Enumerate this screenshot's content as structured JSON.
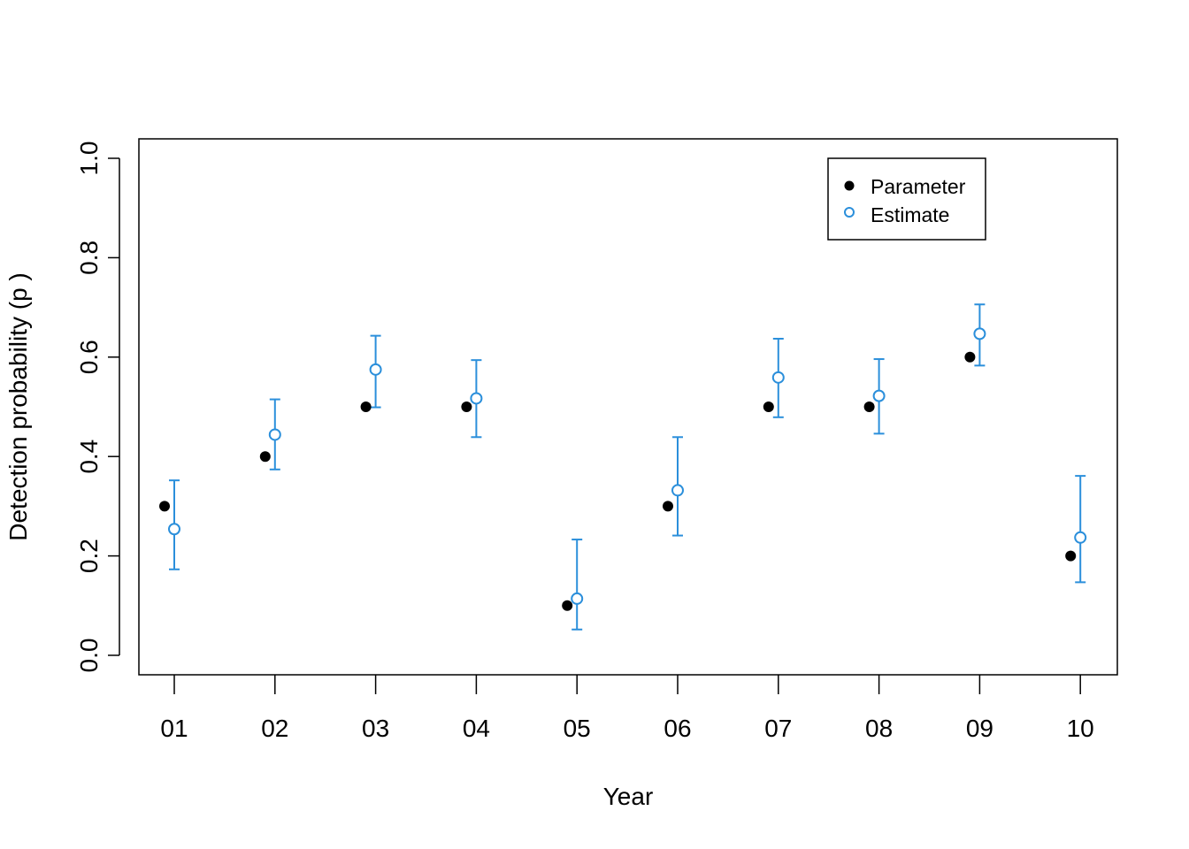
{
  "chart_data": {
    "type": "scatter",
    "title": "",
    "xlabel": "Year",
    "ylabel": "Detection probability (p )",
    "categories": [
      "01",
      "02",
      "03",
      "04",
      "05",
      "06",
      "07",
      "08",
      "09",
      "10"
    ],
    "ylim": [
      0.0,
      1.0
    ],
    "y_ticks": [
      "0.0",
      "0.2",
      "0.4",
      "0.6",
      "0.8",
      "1.0"
    ],
    "grid": false,
    "legend_position": "top-right",
    "series": [
      {
        "name": "Parameter",
        "marker": "filled-circle",
        "color": "#000000",
        "values": [
          0.3,
          0.4,
          0.5,
          0.5,
          0.1,
          0.3,
          0.5,
          0.5,
          0.6,
          0.2
        ]
      },
      {
        "name": "Estimate",
        "marker": "open-circle",
        "color": "#2B8FDB",
        "values": [
          0.254,
          0.444,
          0.575,
          0.517,
          0.114,
          0.332,
          0.559,
          0.522,
          0.647,
          0.237
        ],
        "lower": [
          0.173,
          0.374,
          0.499,
          0.439,
          0.052,
          0.241,
          0.479,
          0.446,
          0.583,
          0.147
        ],
        "upper": [
          0.352,
          0.515,
          0.643,
          0.594,
          0.233,
          0.439,
          0.637,
          0.596,
          0.706,
          0.361
        ]
      }
    ]
  }
}
